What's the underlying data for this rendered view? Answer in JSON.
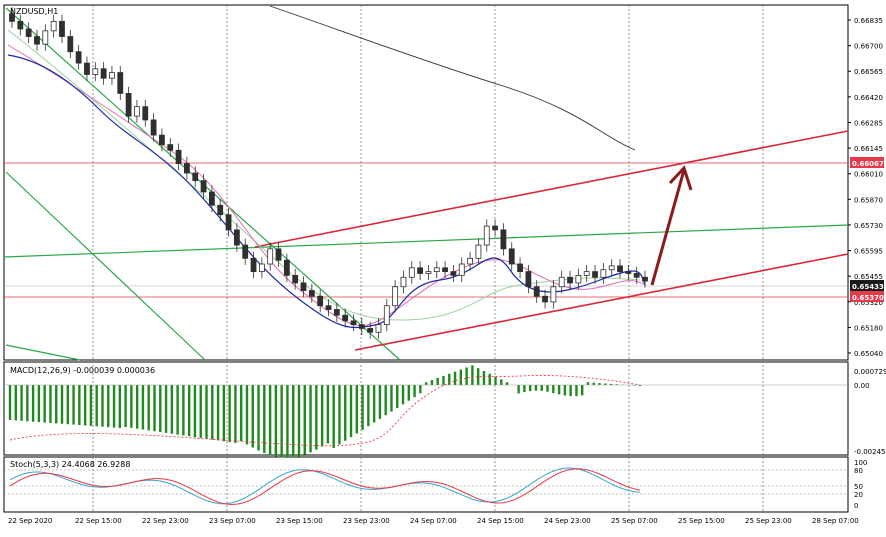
{
  "chart_data": [
    {
      "type": "candlestick",
      "title": "NZDUSD,H1",
      "symbol": "NZDUSD",
      "timeframe": "H1",
      "ylim": [
        0.6504,
        0.6686
      ],
      "y_ticks": [
        "0.66835",
        "0.66700",
        "0.66565",
        "0.66420",
        "0.66285",
        "0.66145",
        "0.66010",
        "0.65870",
        "0.65730",
        "0.65595",
        "0.65455",
        "0.65320",
        "0.65180",
        "0.65040"
      ],
      "price_labels": [
        {
          "value": "0.66067",
          "color": "#e8394a"
        },
        {
          "value": "0.65433",
          "color": "#1a1a1a"
        },
        {
          "value": "0.65370",
          "color": "#e8394a"
        }
      ],
      "x_ticks": [
        "22 Sep 2020",
        "22 Sep 15:00",
        "22 Sep 23:00",
        "23 Sep 07:00",
        "23 Sep 15:00",
        "23 Sep 23:00",
        "24 Sep 07:00",
        "24 Sep 15:00",
        "24 Sep 23:00",
        "25 Sep 07:00",
        "25 Sep 15:00",
        "25 Sep 23:00",
        "28 Sep 07:00"
      ],
      "ohlc_close_path": [
        0.668,
        0.6676,
        0.6672,
        0.6668,
        0.6675,
        0.668,
        0.6672,
        0.6664,
        0.6658,
        0.6652,
        0.6655,
        0.665,
        0.6653,
        0.6642,
        0.663,
        0.6635,
        0.6628,
        0.662,
        0.6615,
        0.6612,
        0.6605,
        0.66,
        0.6596,
        0.659,
        0.6583,
        0.6578,
        0.657,
        0.6562,
        0.6555,
        0.6548,
        0.6552,
        0.656,
        0.6554,
        0.6546,
        0.6542,
        0.6538,
        0.6535,
        0.653,
        0.6528,
        0.6525,
        0.6522,
        0.652,
        0.6518,
        0.6516,
        0.652,
        0.653,
        0.654,
        0.6545,
        0.655,
        0.6547,
        0.6548,
        0.655,
        0.6548,
        0.6546,
        0.6552,
        0.6555,
        0.6562,
        0.6572,
        0.657,
        0.656,
        0.6552,
        0.6548,
        0.654,
        0.6535,
        0.6532,
        0.654,
        0.6545,
        0.6542,
        0.6546,
        0.6548,
        0.6545,
        0.6549,
        0.6551,
        0.6548,
        0.6547,
        0.6545,
        0.6543
      ],
      "colors": {
        "up": "#2f2f2f",
        "down": "#2f2f2f",
        "channel": "#d7283a",
        "horizontal_red": "#e8394a",
        "green_line": "#2aa748",
        "arrow": "#8b1a1a",
        "ma_fast": "#1c2aa8",
        "ma_mid": "#e06bb0",
        "ma_slow": "#9bd39b",
        "ma_long": "#333333"
      }
    },
    {
      "type": "histogram",
      "title": "MACD(12,26,9) -0.000039 0.000036",
      "y_ticks": [
        "0.000729",
        "0.00",
        "-0.002458"
      ],
      "ylim": [
        -0.002458,
        0.000729
      ],
      "colors": {
        "hist": "#1e8a1e",
        "signal": "#e8394a"
      }
    },
    {
      "type": "line",
      "title": "Stoch(5,3,3) 24.4068 26.9288",
      "y_ticks": [
        "100",
        "80",
        "50",
        "20",
        "0"
      ],
      "ylim": [
        0,
        100
      ],
      "colors": {
        "k": "#3aa6c8",
        "d": "#e8394a"
      }
    }
  ]
}
